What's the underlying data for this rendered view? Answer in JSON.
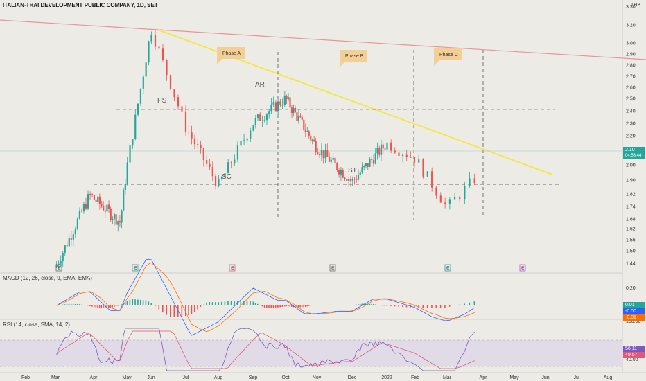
{
  "header": {
    "title": "ITALIAN-THAI DEVELOPMENT PUBLIC COMPANY, 1D, SET",
    "currency": "THB"
  },
  "indicators": {
    "macd_label": "MACD (12, 26, close, 9, EMA, EMA)",
    "rsi_label": "RSI (14, close, SMA, 14, 2)"
  },
  "price_axis": {
    "ticks": [
      "3.20",
      "3.00",
      "2.90",
      "2.80",
      "2.70",
      "2.60",
      "2.50",
      "2.40",
      "2.30",
      "2.20",
      "2.10",
      "2.00",
      "1.90",
      "1.82",
      "1.74",
      "1.68",
      "1.62",
      "1.56",
      "1.50",
      "1.44"
    ],
    "top_label": "3.30",
    "last_price": "2.10",
    "countdown": "04:53:44"
  },
  "macd_axis": {
    "ticks": [
      "0.20"
    ],
    "tags": [
      "0.01",
      "-0.00",
      "-0.01"
    ]
  },
  "rsi_axis": {
    "ticks": [
      "100.00",
      "40.00"
    ],
    "tags": [
      "56.11",
      "49.57"
    ]
  },
  "x_axis": {
    "labels": [
      "Feb",
      "Mar",
      "Apr",
      "May",
      "Jun",
      "Jul",
      "Aug",
      "Sep",
      "Oct",
      "Nov",
      "Dec",
      "2022",
      "Feb",
      "Mar",
      "Apr",
      "May",
      "Jun",
      "Jul",
      "Aug"
    ]
  },
  "annotations": {
    "phases": [
      "Phase A",
      "Phase B",
      "Phase C"
    ],
    "wyckoff_labels": [
      "PS",
      "SC",
      "AR",
      "ST"
    ]
  },
  "event_markers": [
    "E",
    "E",
    "E",
    "E",
    "E",
    "E"
  ],
  "colors": {
    "up": "#26a69a",
    "down": "#ef5350",
    "trendline": "#f5e64a",
    "resistance": "#e8949c",
    "macd": "#2962ff",
    "signal": "#ff6d00",
    "rsi": "#7e57c2",
    "rsi_ma": "#e05a78"
  },
  "chart_data": {
    "type": "candlestick",
    "title": "ITALIAN-THAI DEVELOPMENT PUBLIC COMPANY, 1D, SET",
    "period": "1D",
    "x_range": [
      "Feb",
      "Aug"
    ],
    "ylim": [
      1.4,
      3.3
    ],
    "last_close": 2.1,
    "key_points": [
      {
        "x": "Mar",
        "y": 1.42
      },
      {
        "x": "Apr",
        "y": 1.95
      },
      {
        "x": "May",
        "y": 1.75
      },
      {
        "x": "Jun",
        "y": 3.17
      },
      {
        "x": "Jul",
        "y": 2.45
      },
      {
        "x": "Aug",
        "y": 2.02
      },
      {
        "x": "Sep",
        "y": 2.48
      },
      {
        "x": "Oct",
        "y": 2.66
      },
      {
        "x": "Nov",
        "y": 2.3
      },
      {
        "x": "Dec",
        "y": 2.05
      },
      {
        "x": "2022",
        "y": 2.33
      },
      {
        "x": "Feb",
        "y": 2.22
      },
      {
        "x": "Mar",
        "y": 1.86
      },
      {
        "x": "Apr",
        "y": 2.1
      }
    ],
    "horizontal_levels": [
      2.58,
      2.03
    ],
    "grid": false
  }
}
